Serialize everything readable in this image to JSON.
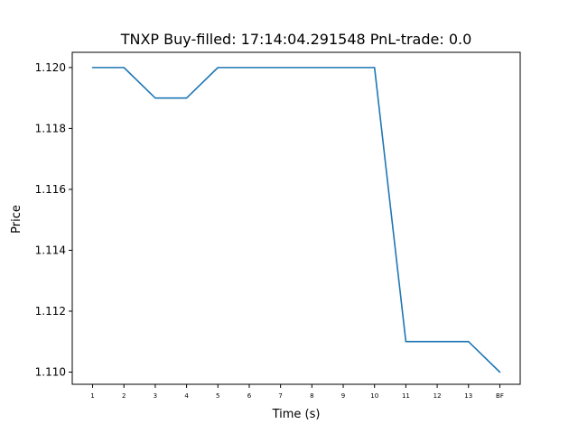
{
  "chart_data": {
    "type": "line",
    "title": "TNXP  Buy-filled:  17:14:04.291548  PnL-trade:  0.0",
    "xlabel": "Time (s)",
    "ylabel": "Price",
    "categories": [
      "1",
      "2",
      "3",
      "4",
      "5",
      "6",
      "7",
      "8",
      "9",
      "10",
      "11",
      "12",
      "13",
      "BF"
    ],
    "series": [
      {
        "values": [
          1.12,
          1.12,
          1.119,
          1.119,
          1.12,
          1.12,
          1.12,
          1.12,
          1.12,
          1.12,
          1.111,
          1.111,
          1.111,
          1.11
        ],
        "color": "#1f77b4"
      }
    ],
    "ylim": [
      1.1096,
      1.1205
    ],
    "yticks": [
      1.11,
      1.112,
      1.114,
      1.116,
      1.118,
      1.12
    ],
    "ytick_labels": [
      "1.110",
      "1.112",
      "1.114",
      "1.116",
      "1.118",
      "1.120"
    ],
    "grid": false
  }
}
